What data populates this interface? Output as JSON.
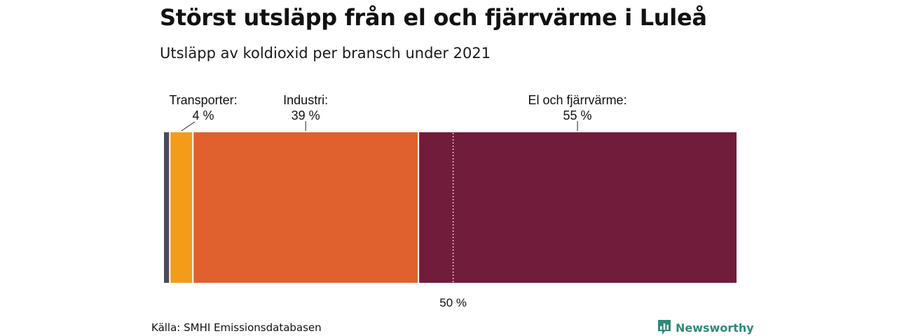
{
  "colors": {
    "other": "#4a4a5c",
    "transport": "#f39c1a",
    "industry": "#e0602e",
    "energy": "#721c3b",
    "brand": "#2e8a78"
  },
  "source": "Källa: SMHI Emissionsdatabasen",
  "brand": {
    "name": "Newsworthy",
    "icon": "bar-chart-speech-bubble-icon"
  },
  "chart_data": {
    "type": "bar",
    "orientation": "horizontal-stacked",
    "title": "Störst utsläpp från el och fjärrvärme i Luleå",
    "subtitle": "Utsläpp av koldioxid per bransch under 2021",
    "xlim": [
      0,
      100
    ],
    "grid": false,
    "legend": "none",
    "reference_line": {
      "value": 50,
      "label": "50 %"
    },
    "segments": [
      {
        "value": 1,
        "color": "#4a4a5c"
      },
      {
        "name": "Transporter:",
        "value": 4,
        "label": "4 %",
        "color": "#f39c1a"
      },
      {
        "name": "Industri:",
        "value": 39,
        "label": "39 %",
        "color": "#e0602e"
      },
      {
        "name": "El och fjärrvärme:",
        "value": 55,
        "label": "55 %",
        "color": "#721c3b"
      }
    ]
  }
}
